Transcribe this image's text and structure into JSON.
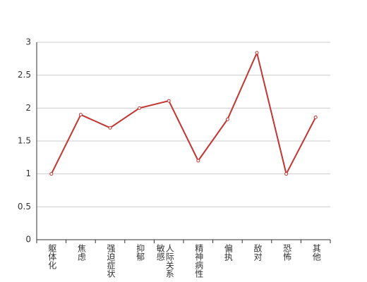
{
  "chart_data": {
    "type": "line",
    "categories": [
      "躯体化",
      "焦虑",
      "强迫症状",
      "抑郁",
      "人际关系敏感",
      "精神病性",
      "偏执",
      "敌对",
      "恐怖",
      "其他"
    ],
    "series": [
      {
        "color": "#c23531",
        "values": [
          1.0,
          1.9,
          1.7,
          2.0,
          2.11,
          1.2,
          1.83,
          2.84,
          1.0,
          1.86
        ]
      }
    ],
    "ylim": [
      0,
      3
    ],
    "yticks": [
      0,
      0.5,
      1,
      1.5,
      2,
      2.5,
      3
    ],
    "grid": true
  }
}
